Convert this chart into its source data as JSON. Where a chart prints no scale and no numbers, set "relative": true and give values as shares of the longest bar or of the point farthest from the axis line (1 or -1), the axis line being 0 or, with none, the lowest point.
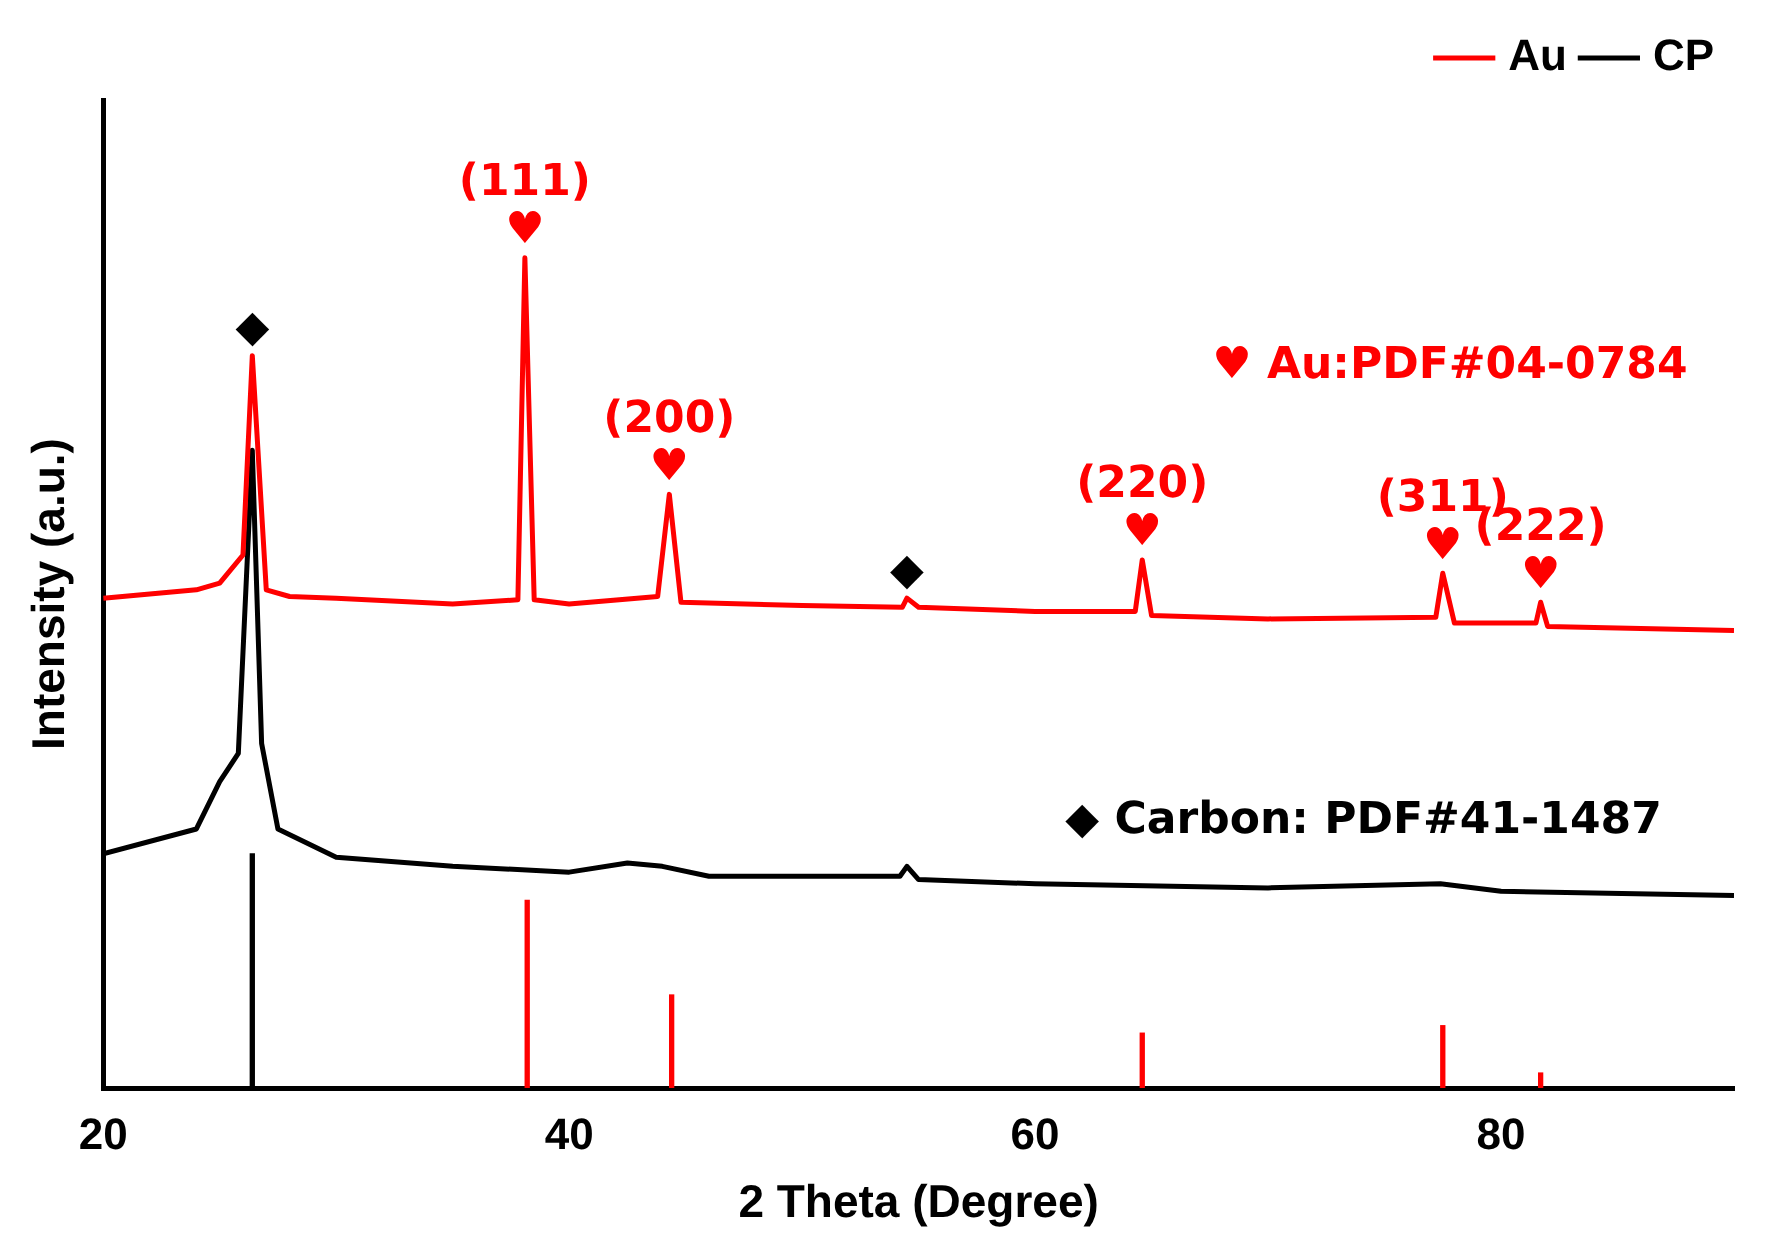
{
  "chart_data": {
    "type": "line",
    "relative": true,
    "xlabel": "2 Theta (Degree)",
    "ylabel": "Intensity (a.u.)",
    "xlim": [
      20,
      90
    ],
    "xticks": [
      20,
      40,
      60,
      80
    ],
    "grid": false,
    "legend": "top right",
    "marker": "none",
    "line_style": "solid",
    "series": [
      {
        "name": "Au",
        "color": "#ff0000",
        "x": [
          20,
          24,
          25,
          26,
          26.4,
          27,
          28,
          30,
          35,
          37.8,
          38.1,
          38.5,
          40,
          43.8,
          44.3,
          44.8,
          50,
          54.3,
          54.5,
          55,
          60,
          64.3,
          64.6,
          65,
          70,
          77.2,
          77.5,
          78,
          81.5,
          81.7,
          82,
          90
        ],
        "values": [
          0.59,
          0.6,
          0.608,
          0.642,
          0.882,
          0.6,
          0.592,
          0.59,
          0.583,
          0.588,
          1.0,
          0.588,
          0.583,
          0.592,
          0.715,
          0.585,
          0.581,
          0.579,
          0.59,
          0.579,
          0.574,
          0.574,
          0.636,
          0.569,
          0.565,
          0.567,
          0.62,
          0.56,
          0.56,
          0.585,
          0.556,
          0.551
        ]
      },
      {
        "name": "CP",
        "color": "#000000",
        "x": [
          20,
          24,
          25,
          25.8,
          26.4,
          26.8,
          27.5,
          30,
          35,
          40,
          42.5,
          44,
          46,
          54.2,
          54.5,
          55,
          60,
          70,
          77.4,
          80,
          90
        ],
        "values": [
          0.282,
          0.312,
          0.369,
          0.403,
          0.768,
          0.415,
          0.312,
          0.278,
          0.267,
          0.26,
          0.271,
          0.267,
          0.255,
          0.255,
          0.267,
          0.251,
          0.246,
          0.241,
          0.246,
          0.237,
          0.232
        ]
      },
      {
        "type": "bar",
        "color": "#000000",
        "x": [
          26.4
        ],
        "values": [
          0.282
        ]
      },
      {
        "type": "bar",
        "color": "#ff0000",
        "x": [
          38.2,
          44.4,
          64.6,
          77.5,
          81.7
        ],
        "values": [
          0.226,
          0.112,
          0.066,
          0.075,
          0.018
        ]
      }
    ],
    "annotations": [
      {
        "text": "♥",
        "x": 38.1,
        "y": 1.0
      },
      {
        "text": "(111)",
        "x": 38.1,
        "y": 1.0
      },
      {
        "text": "♥",
        "x": 44.3,
        "y": 0.715
      },
      {
        "text": "(200)",
        "x": 44.3,
        "y": 0.715
      },
      {
        "text": "♥",
        "x": 64.6,
        "y": 0.636
      },
      {
        "text": "(220)",
        "x": 64.6,
        "y": 0.636
      },
      {
        "text": "♥",
        "x": 77.5,
        "y": 0.62
      },
      {
        "text": "(311)",
        "x": 77.5,
        "y": 0.62
      },
      {
        "text": "♥",
        "x": 81.7,
        "y": 0.585
      },
      {
        "text": "(222)",
        "x": 81.7,
        "y": 0.585
      },
      {
        "text": "◆",
        "x": 26.4,
        "y": 0.882
      },
      {
        "text": "◆",
        "x": 54.5,
        "y": 0.59
      },
      "♥ Au:PDF#04-0784",
      "◆ Carbon: PDF#41-1487"
    ]
  }
}
